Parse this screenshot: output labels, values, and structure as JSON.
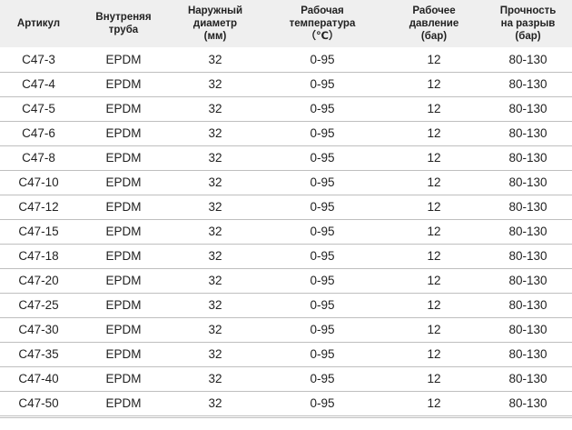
{
  "table": {
    "headers": [
      [
        "Артикул"
      ],
      [
        "Внутреняя",
        "труба"
      ],
      [
        "Наружный",
        "диаметр",
        "(мм)"
      ],
      [
        "Рабочая",
        "температура",
        "（℃）"
      ],
      [
        "Рабочее",
        "давление",
        "(бар)"
      ],
      [
        "Прочность",
        "на разрыв",
        "(бар)"
      ]
    ],
    "rows": [
      [
        "C47-3",
        "EPDM",
        "32",
        "0-95",
        "12",
        "80-130"
      ],
      [
        "C47-4",
        "EPDM",
        "32",
        "0-95",
        "12",
        "80-130"
      ],
      [
        "C47-5",
        "EPDM",
        "32",
        "0-95",
        "12",
        "80-130"
      ],
      [
        "C47-6",
        "EPDM",
        "32",
        "0-95",
        "12",
        "80-130"
      ],
      [
        "C47-8",
        "EPDM",
        "32",
        "0-95",
        "12",
        "80-130"
      ],
      [
        "C47-10",
        "EPDM",
        "32",
        "0-95",
        "12",
        "80-130"
      ],
      [
        "C47-12",
        "EPDM",
        "32",
        "0-95",
        "12",
        "80-130"
      ],
      [
        "C47-15",
        "EPDM",
        "32",
        "0-95",
        "12",
        "80-130"
      ],
      [
        "C47-18",
        "EPDM",
        "32",
        "0-95",
        "12",
        "80-130"
      ],
      [
        "C47-20",
        "EPDM",
        "32",
        "0-95",
        "12",
        "80-130"
      ],
      [
        "C47-25",
        "EPDM",
        "32",
        "0-95",
        "12",
        "80-130"
      ],
      [
        "C47-30",
        "EPDM",
        "32",
        "0-95",
        "12",
        "80-130"
      ],
      [
        "C47-35",
        "EPDM",
        "32",
        "0-95",
        "12",
        "80-130"
      ],
      [
        "C47-40",
        "EPDM",
        "32",
        "0-95",
        "12",
        "80-130"
      ],
      [
        "C47-50",
        "EPDM",
        "32",
        "0-95",
        "12",
        "80-130"
      ]
    ]
  },
  "colors": {
    "header_background": "#efefef",
    "row_divider": "#bfbfbf",
    "text": "#222222"
  }
}
